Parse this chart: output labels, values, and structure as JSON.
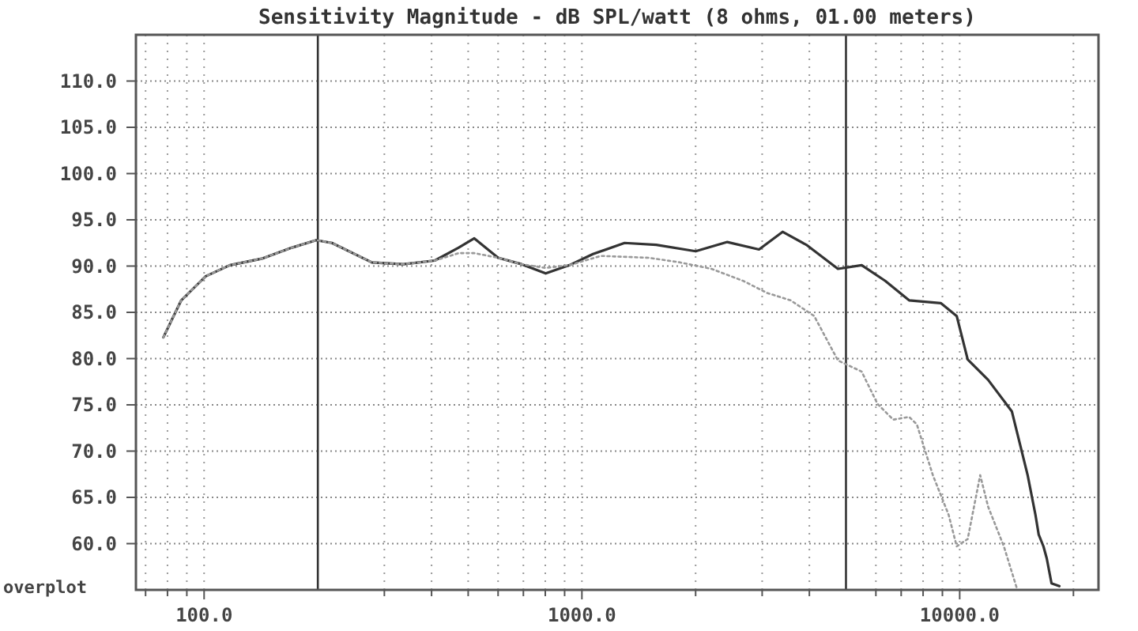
{
  "chart_data": {
    "type": "line",
    "title": "Sensitivity Magnitude - dB SPL/watt (8 ohms, 01.00 meters)",
    "log": "x",
    "grid": true,
    "xlim": [
      66,
      23300
    ],
    "ylim": [
      55,
      115
    ],
    "xticks": [
      {
        "value": 70,
        "label": null
      },
      {
        "value": 80,
        "label": null
      },
      {
        "value": 90,
        "label": null
      },
      {
        "value": 100,
        "label": "100.0"
      },
      {
        "value": 300,
        "label": null
      },
      {
        "value": 400,
        "label": null
      },
      {
        "value": 500,
        "label": null
      },
      {
        "value": 600,
        "label": null
      },
      {
        "value": 700,
        "label": null
      },
      {
        "value": 800,
        "label": null
      },
      {
        "value": 900,
        "label": null
      },
      {
        "value": 1000,
        "label": "1000.0"
      },
      {
        "value": 2000,
        "label": null
      },
      {
        "value": 3000,
        "label": null
      },
      {
        "value": 4000,
        "label": null
      },
      {
        "value": 6000,
        "label": null
      },
      {
        "value": 7000,
        "label": null
      },
      {
        "value": 8000,
        "label": null
      },
      {
        "value": 9000,
        "label": null
      },
      {
        "value": 10000,
        "label": "10000.0"
      },
      {
        "value": 20000,
        "label": null
      }
    ],
    "yticks": [
      {
        "value": 60,
        "label": "60.0"
      },
      {
        "value": 65,
        "label": "65.0"
      },
      {
        "value": 70,
        "label": "70.0"
      },
      {
        "value": 75,
        "label": "75.0"
      },
      {
        "value": 80,
        "label": "80.0"
      },
      {
        "value": 85,
        "label": "85.0"
      },
      {
        "value": 90,
        "label": "90.0"
      },
      {
        "value": 95,
        "label": "95.0"
      },
      {
        "value": 100,
        "label": "100.0"
      },
      {
        "value": 105,
        "label": "105.0"
      },
      {
        "value": 110,
        "label": "110.0"
      }
    ],
    "ref_lines": [
      {
        "axis": "x",
        "value": 200,
        "color": "#333333"
      },
      {
        "axis": "x",
        "value": 5000,
        "color": "#333333"
      }
    ],
    "annotations": [
      "overplot"
    ],
    "series": [
      {
        "color": "#333333",
        "line_style": "solid",
        "x": [
          78,
          87,
          101,
          117,
          142,
          171,
          198,
          218,
          278,
          337,
          408,
          472,
          519,
          600,
          693,
          802,
          927,
          1070,
          1297,
          1573,
          2000,
          2426,
          2943,
          3398,
          3926,
          4761,
          5503,
          6353,
          7345,
          8910,
          9820,
          10500,
          11890,
          13740,
          15130,
          15870,
          16180,
          16660,
          17000,
          17500,
          18360
        ],
        "values": [
          82.3,
          86.3,
          88.9,
          90.1,
          90.8,
          92.0,
          92.8,
          92.5,
          90.4,
          90.2,
          90.6,
          92.0,
          93.0,
          90.9,
          90.2,
          89.2,
          90.1,
          91.3,
          92.5,
          92.3,
          91.6,
          92.6,
          91.8,
          93.7,
          92.3,
          89.7,
          90.1,
          88.4,
          86.3,
          86.0,
          84.6,
          79.9,
          77.7,
          74.3,
          67.4,
          63.1,
          61.0,
          59.7,
          58.4,
          55.7,
          55.4
        ]
      },
      {
        "color": "#999999",
        "line_style": "dotted",
        "x": [
          78,
          87,
          101,
          117,
          142,
          171,
          198,
          218,
          278,
          337,
          408,
          472,
          519,
          600,
          693,
          802,
          927,
          1122,
          1500,
          1817,
          2203,
          2673,
          3090,
          3567,
          4120,
          4761,
          5500,
          6060,
          6670,
          7345,
          7700,
          8490,
          9350,
          9820,
          10500,
          11330,
          11890,
          13090,
          14160
        ],
        "values": [
          82.3,
          86.3,
          88.9,
          90.1,
          90.8,
          92.0,
          92.8,
          92.5,
          90.4,
          90.2,
          90.6,
          91.4,
          91.4,
          90.9,
          90.2,
          89.8,
          90.1,
          91.1,
          90.9,
          90.4,
          89.7,
          88.4,
          87.1,
          86.3,
          84.6,
          79.8,
          78.6,
          75.1,
          73.4,
          73.7,
          72.9,
          67.4,
          63.1,
          59.7,
          60.5,
          67.4,
          64.0,
          59.7,
          55.2
        ]
      }
    ]
  }
}
